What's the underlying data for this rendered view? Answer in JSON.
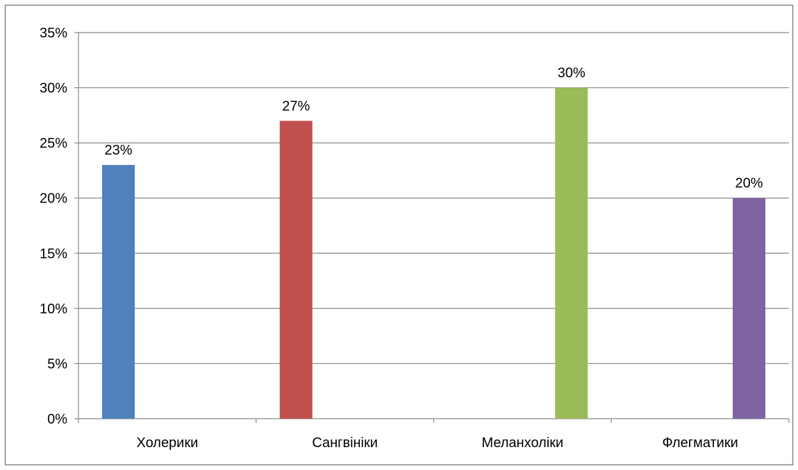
{
  "chart_data": {
    "type": "bar",
    "title": "",
    "xlabel": "",
    "ylabel": "",
    "categories": [
      "Холерики",
      "Сангвініки",
      "Меланхоліки",
      "Флегматики"
    ],
    "values": [
      23,
      27,
      30,
      20
    ],
    "data_labels": [
      "23%",
      "27%",
      "30%",
      "20%"
    ],
    "colors": [
      "#4f81bd",
      "#c0504d",
      "#9bbb59",
      "#8064a2"
    ],
    "bar_offsets": [
      "left",
      "left",
      "right",
      "right"
    ],
    "ylim": [
      0,
      35
    ],
    "yticks": [
      0,
      5,
      10,
      15,
      20,
      25,
      30,
      35
    ],
    "ytick_labels": [
      "0%",
      "5%",
      "10%",
      "15%",
      "20%",
      "25%",
      "30%",
      "35%"
    ],
    "grid": true,
    "legend": "none",
    "gridline_color": "#878787",
    "border_color": "#878787"
  }
}
